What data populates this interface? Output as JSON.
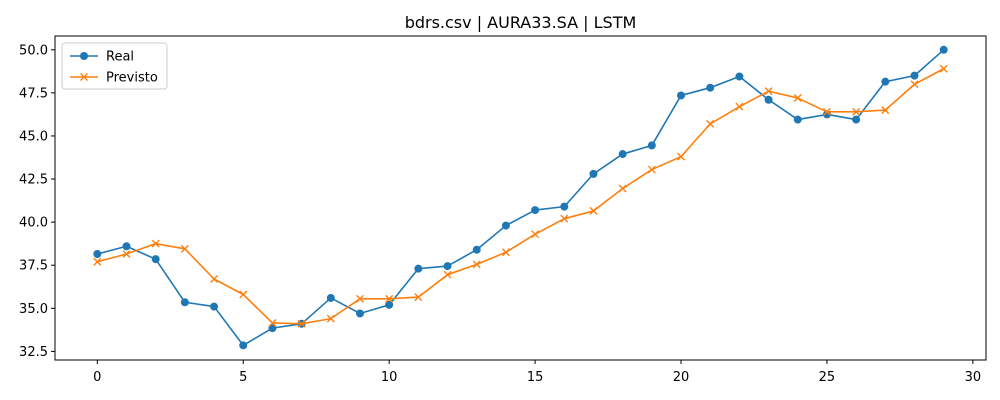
{
  "chart_data": {
    "type": "line",
    "title": "bdrs.csv | AURA33.SA | LSTM",
    "xlabel": "",
    "ylabel": "",
    "xlim": [
      -1.45,
      30.45
    ],
    "ylim": [
      32.0,
      50.8
    ],
    "xticks": [
      0,
      5,
      10,
      15,
      20,
      25,
      30
    ],
    "yticks": [
      32.5,
      35.0,
      37.5,
      40.0,
      42.5,
      45.0,
      47.5,
      50.0
    ],
    "xtick_labels": [
      "0",
      "5",
      "10",
      "15",
      "20",
      "25",
      "30"
    ],
    "ytick_labels": [
      "32.5",
      "35.0",
      "37.5",
      "40.0",
      "42.5",
      "45.0",
      "47.5",
      "50.0"
    ],
    "grid": false,
    "legend_position": "top-left",
    "x": [
      0,
      1,
      2,
      3,
      4,
      5,
      6,
      7,
      8,
      9,
      10,
      11,
      12,
      13,
      14,
      15,
      16,
      17,
      18,
      19,
      20,
      21,
      22,
      23,
      24,
      25,
      26,
      27,
      28,
      29
    ],
    "series": [
      {
        "name": "Real",
        "color": "#1f77b4",
        "marker": "circle",
        "values": [
          38.15,
          38.6,
          37.85,
          35.35,
          35.1,
          32.85,
          33.85,
          34.1,
          35.6,
          34.7,
          35.2,
          37.3,
          37.45,
          38.4,
          39.8,
          40.7,
          40.9,
          42.8,
          43.95,
          44.45,
          47.35,
          47.8,
          48.45,
          47.1,
          45.95,
          46.25,
          45.95,
          48.15,
          48.5,
          50.0
        ]
      },
      {
        "name": "Previsto",
        "color": "#ff7f0e",
        "marker": "x",
        "values": [
          37.7,
          38.15,
          38.75,
          38.45,
          36.7,
          35.8,
          34.15,
          34.1,
          34.4,
          35.55,
          35.55,
          35.65,
          36.95,
          37.55,
          38.25,
          39.3,
          40.2,
          40.65,
          41.95,
          43.05,
          43.8,
          45.7,
          46.7,
          47.6,
          47.2,
          46.4,
          46.4,
          46.5,
          48.0,
          48.9
        ]
      }
    ]
  }
}
